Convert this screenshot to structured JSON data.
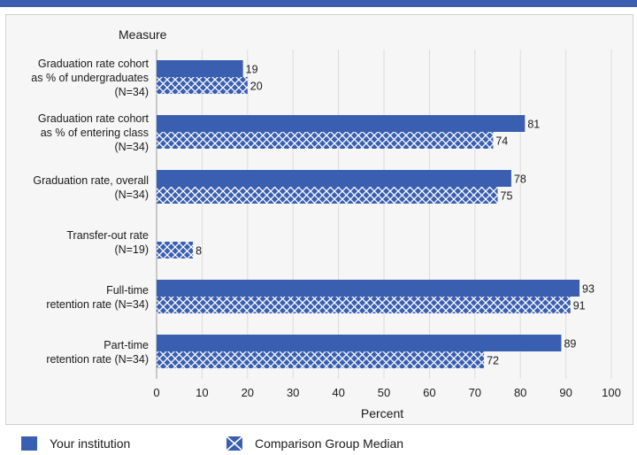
{
  "chart_data": {
    "type": "bar",
    "orientation": "horizontal",
    "y_header": "Measure",
    "xlabel": "Percent",
    "xlim": [
      0,
      100
    ],
    "xticks": [
      0,
      10,
      20,
      30,
      40,
      50,
      60,
      70,
      80,
      90,
      100
    ],
    "categories": [
      [
        "Graduation rate cohort",
        "as % of undergraduates",
        "(N=34)"
      ],
      [
        "Graduation rate cohort",
        "as % of entering class",
        "(N=34)"
      ],
      [
        "Graduation rate, overall",
        "(N=34)"
      ],
      [
        "Transfer-out rate",
        "(N=19)"
      ],
      [
        "Full-time",
        "retention rate (N=34)"
      ],
      [
        "Part-time",
        "retention rate (N=34)"
      ]
    ],
    "series": [
      {
        "name": "Your institution",
        "values": [
          19,
          81,
          78,
          null,
          93,
          89
        ],
        "color": "#3a5fb0",
        "pattern": "solid"
      },
      {
        "name": "Comparison Group Median",
        "values": [
          20,
          74,
          75,
          8,
          91,
          72
        ],
        "color": "#3a5fb0",
        "pattern": "crosshatch"
      }
    ],
    "grid": "vertical",
    "legend_position": "bottom"
  }
}
